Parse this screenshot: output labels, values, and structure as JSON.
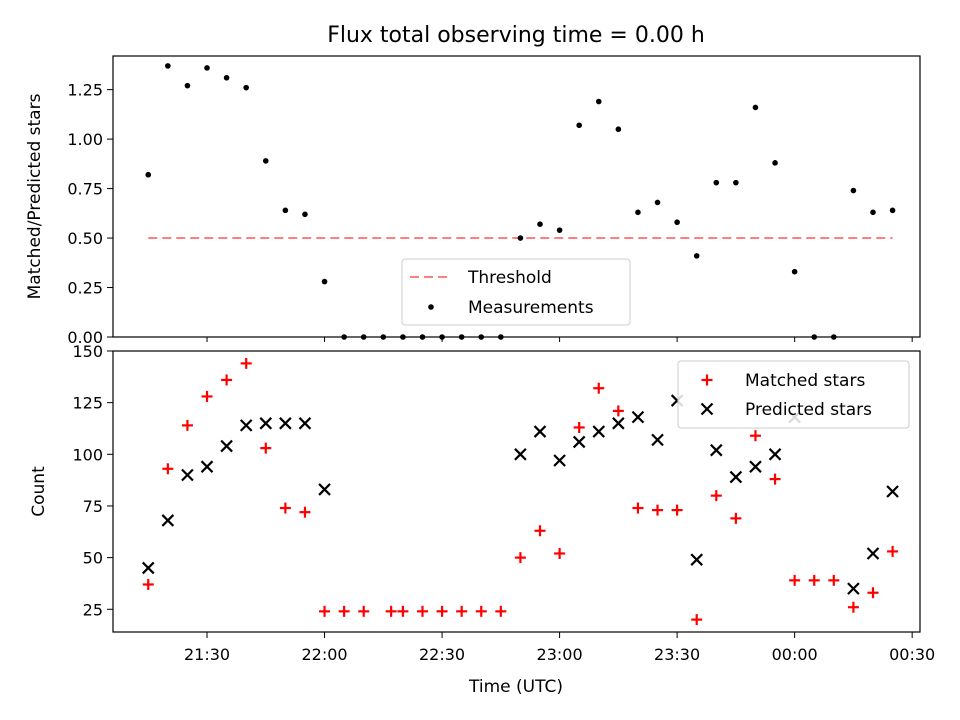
{
  "chart_data": [
    {
      "type": "scatter",
      "title": "Flux total observing time = 0.00 h",
      "xlabel": "",
      "ylabel": "Matched/Predicted stars",
      "ylim": [
        0,
        1.42
      ],
      "yticks": [
        "0.00",
        "0.25",
        "0.50",
        "0.75",
        "1.00",
        "1.25"
      ],
      "legend": "lower-center",
      "threshold": {
        "name": "Threshold",
        "value": 0.5,
        "x_start": "21:15",
        "x_end": "00:25",
        "color": "#ff7f7f"
      },
      "series": [
        {
          "name": "Measurements",
          "color": "#000000",
          "points": [
            [
              "21:15",
              0.82
            ],
            [
              "21:20",
              1.37
            ],
            [
              "21:25",
              1.27
            ],
            [
              "21:30",
              1.36
            ],
            [
              "21:35",
              1.31
            ],
            [
              "21:40",
              1.26
            ],
            [
              "21:45",
              0.89
            ],
            [
              "21:50",
              0.64
            ],
            [
              "21:55",
              0.62
            ],
            [
              "22:00",
              0.28
            ],
            [
              "22:05",
              0.0
            ],
            [
              "22:10",
              0.0
            ],
            [
              "22:15",
              0.0
            ],
            [
              "22:20",
              0.0
            ],
            [
              "22:25",
              0.0
            ],
            [
              "22:30",
              0.0
            ],
            [
              "22:35",
              0.0
            ],
            [
              "22:40",
              0.0
            ],
            [
              "22:45",
              0.0
            ],
            [
              "22:50",
              0.5
            ],
            [
              "22:55",
              0.57
            ],
            [
              "23:00",
              0.54
            ],
            [
              "23:05",
              1.07
            ],
            [
              "23:10",
              1.19
            ],
            [
              "23:15",
              1.05
            ],
            [
              "23:20",
              0.63
            ],
            [
              "23:25",
              0.68
            ],
            [
              "23:30",
              0.58
            ],
            [
              "23:35",
              0.41
            ],
            [
              "23:40",
              0.78
            ],
            [
              "23:45",
              0.78
            ],
            [
              "23:50",
              1.16
            ],
            [
              "23:55",
              0.88
            ],
            [
              "00:00",
              0.33
            ],
            [
              "00:05",
              0.0
            ],
            [
              "00:10",
              0.0
            ],
            [
              "00:15",
              0.74
            ],
            [
              "00:20",
              0.63
            ],
            [
              "00:25",
              0.64
            ]
          ]
        }
      ]
    },
    {
      "type": "scatter",
      "title": "",
      "xlabel": "Time (UTC)",
      "ylabel": "Count",
      "ylim": [
        14,
        150
      ],
      "yticks": [
        "25",
        "50",
        "75",
        "100",
        "125",
        "150"
      ],
      "xticks": [
        "21:30",
        "22:00",
        "22:30",
        "23:00",
        "23:30",
        "00:00",
        "00:30"
      ],
      "legend": "top-right",
      "series": [
        {
          "name": "Matched stars",
          "color": "#ff0000",
          "marker": "plus",
          "points": [
            [
              "21:15",
              37
            ],
            [
              "21:20",
              93
            ],
            [
              "21:25",
              114
            ],
            [
              "21:30",
              128
            ],
            [
              "21:35",
              136
            ],
            [
              "21:40",
              144
            ],
            [
              "21:45",
              103
            ],
            [
              "21:50",
              74
            ],
            [
              "21:55",
              72
            ],
            [
              "22:00",
              24
            ],
            [
              "22:05",
              24
            ],
            [
              "22:10",
              24
            ],
            [
              "22:17",
              24
            ],
            [
              "22:20",
              24
            ],
            [
              "22:25",
              24
            ],
            [
              "22:30",
              24
            ],
            [
              "22:35",
              24
            ],
            [
              "22:40",
              24
            ],
            [
              "22:45",
              24
            ],
            [
              "22:50",
              50
            ],
            [
              "22:55",
              63
            ],
            [
              "23:00",
              52
            ],
            [
              "23:05",
              113
            ],
            [
              "23:10",
              132
            ],
            [
              "23:15",
              121
            ],
            [
              "23:20",
              74
            ],
            [
              "23:25",
              73
            ],
            [
              "23:30",
              73
            ],
            [
              "23:35",
              20
            ],
            [
              "23:40",
              80
            ],
            [
              "23:45",
              69
            ],
            [
              "23:50",
              109
            ],
            [
              "23:55",
              88
            ],
            [
              "00:00",
              39
            ],
            [
              "00:05",
              39
            ],
            [
              "00:10",
              39
            ],
            [
              "00:15",
              26
            ],
            [
              "00:20",
              33
            ],
            [
              "00:25",
              53
            ]
          ]
        },
        {
          "name": "Predicted stars",
          "color": "#000000",
          "marker": "x",
          "points": [
            [
              "21:15",
              45
            ],
            [
              "21:20",
              68
            ],
            [
              "21:25",
              90
            ],
            [
              "21:30",
              94
            ],
            [
              "21:35",
              104
            ],
            [
              "21:40",
              114
            ],
            [
              "21:45",
              115
            ],
            [
              "21:50",
              115
            ],
            [
              "21:55",
              115
            ],
            [
              "22:00",
              83
            ],
            [
              "22:50",
              100
            ],
            [
              "22:55",
              111
            ],
            [
              "23:00",
              97
            ],
            [
              "23:05",
              106
            ],
            [
              "23:10",
              111
            ],
            [
              "23:15",
              115
            ],
            [
              "23:20",
              118
            ],
            [
              "23:25",
              107
            ],
            [
              "23:30",
              126
            ],
            [
              "23:35",
              49
            ],
            [
              "23:40",
              102
            ],
            [
              "23:45",
              89
            ],
            [
              "23:50",
              94
            ],
            [
              "23:55",
              100
            ],
            [
              "00:00",
              118
            ],
            [
              "00:15",
              35
            ],
            [
              "00:20",
              52
            ],
            [
              "00:25",
              82
            ]
          ]
        }
      ]
    }
  ]
}
